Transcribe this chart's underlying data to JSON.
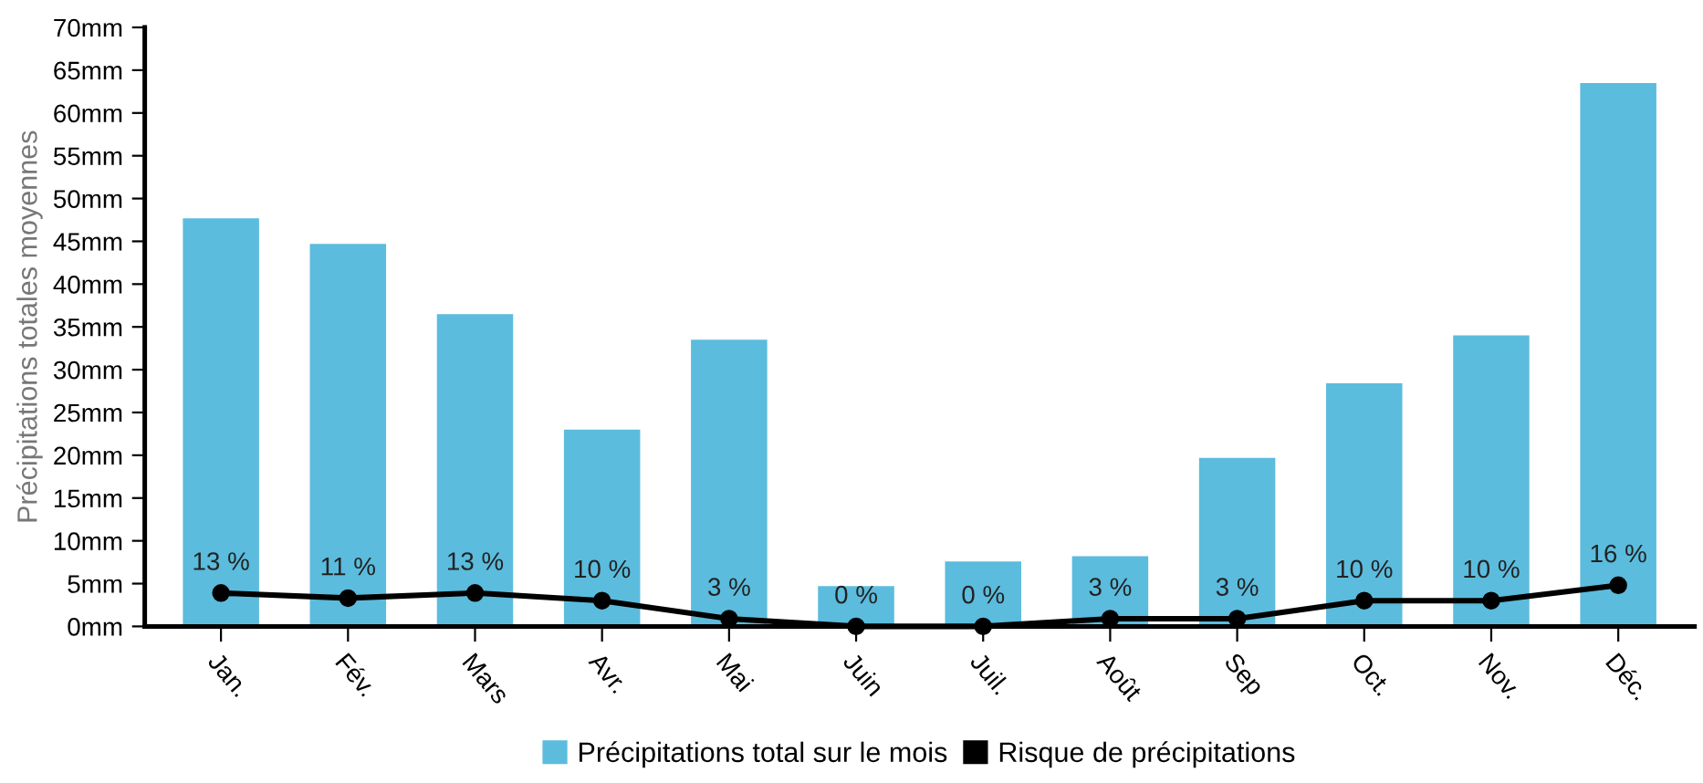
{
  "chart_data": {
    "type": "bar",
    "ylabel": "Précipitations totales moyennes",
    "categories": [
      "Jan.",
      "Fév.",
      "Mars",
      "Avr.",
      "Mai",
      "Juin",
      "Juil.",
      "Août",
      "Sep",
      "Oct.",
      "Nov.",
      "Déc."
    ],
    "series": [
      {
        "name": "Précipitations total sur le mois",
        "color": "#5bbcdd",
        "values": [
          47.7,
          44.7,
          36.5,
          23,
          33.5,
          4.7,
          7.6,
          8.2,
          19.7,
          28.4,
          34,
          63.5
        ]
      },
      {
        "name": "Risque de précipitations",
        "type": "line",
        "axis": "y2",
        "color": "#000000",
        "marker": "circle",
        "data_labels": true,
        "value_labels": [
          "13 %",
          "11 %",
          "13 %",
          "10 %",
          "3 %",
          "0 %",
          "0 %",
          "3 %",
          "3 %",
          "10 %",
          "10 %",
          "16 %"
        ],
        "values": [
          13,
          11,
          13,
          10,
          3,
          0,
          0,
          3,
          3,
          10,
          10,
          16
        ]
      }
    ],
    "ylim": [
      0,
      70
    ],
    "yticks": [
      {
        "value": 0,
        "label": "0mm"
      },
      {
        "value": 5,
        "label": "5mm"
      },
      {
        "value": 10,
        "label": "10mm"
      },
      {
        "value": 15,
        "label": "15mm"
      },
      {
        "value": 20,
        "label": "20mm"
      },
      {
        "value": 25,
        "label": "25mm"
      },
      {
        "value": 30,
        "label": "30mm"
      },
      {
        "value": 35,
        "label": "35mm"
      },
      {
        "value": 40,
        "label": "40mm"
      },
      {
        "value": 45,
        "label": "45mm"
      },
      {
        "value": 50,
        "label": "50mm"
      },
      {
        "value": 55,
        "label": "55mm"
      },
      {
        "value": 60,
        "label": "60mm"
      },
      {
        "value": 65,
        "label": "65mm"
      },
      {
        "value": 70,
        "label": "70mm"
      }
    ],
    "y2lim": [
      0,
      233
    ],
    "grid": false,
    "legend": "bottom",
    "tick_labels": "xy"
  }
}
